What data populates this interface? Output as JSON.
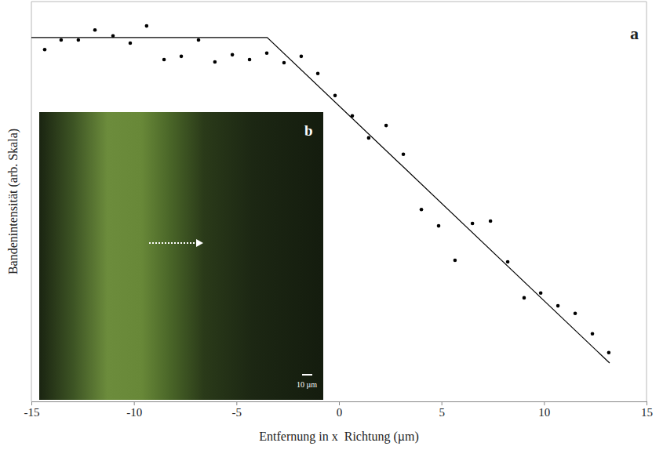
{
  "chart_data": {
    "type": "scatter",
    "x_label": "Entfernung in x  Richtung (µm)",
    "y_label": "Bandenintensität (arb. Skala)",
    "xlim": [
      -15,
      15
    ],
    "ylim": [
      0,
      100
    ],
    "xticks": [
      -15,
      -10,
      -5,
      0,
      5,
      10,
      15
    ],
    "tick_labels": "x",
    "grid": false,
    "annotations": [
      "a",
      "b",
      "10 µm"
    ],
    "series": [
      {
        "type": "scatter",
        "color": "#000000",
        "marker": "circle",
        "x": [
          -14.35,
          -13.55,
          -12.71,
          -11.9,
          -11.02,
          -10.18,
          -9.38,
          -8.53,
          -7.69,
          -6.85,
          -6.05,
          -5.2,
          -4.36,
          -3.52,
          -2.68,
          -1.84,
          -1.03,
          -0.19,
          0.65,
          1.45,
          2.3,
          3.14,
          4.02,
          4.86,
          5.66,
          6.51,
          7.39,
          8.23,
          9.03,
          9.84,
          10.68,
          11.52,
          12.36,
          13.16
        ],
        "values": [
          88.0,
          90.4,
          90.4,
          92.9,
          91.4,
          89.6,
          93.9,
          85.5,
          86.3,
          90.4,
          84.9,
          86.7,
          85.5,
          87.1,
          84.7,
          86.3,
          82.0,
          76.5,
          71.4,
          65.9,
          69.0,
          61.8,
          48.0,
          43.9,
          35.3,
          44.5,
          45.1,
          34.9,
          25.9,
          27.1,
          23.9,
          22.0,
          16.9,
          12.2
        ]
      },
      {
        "type": "line",
        "color": "#000000",
        "line_style": "solid",
        "x": [
          -15,
          -3.5,
          13.2
        ],
        "values": [
          91.0,
          91.0,
          9.6
        ]
      }
    ]
  }
}
